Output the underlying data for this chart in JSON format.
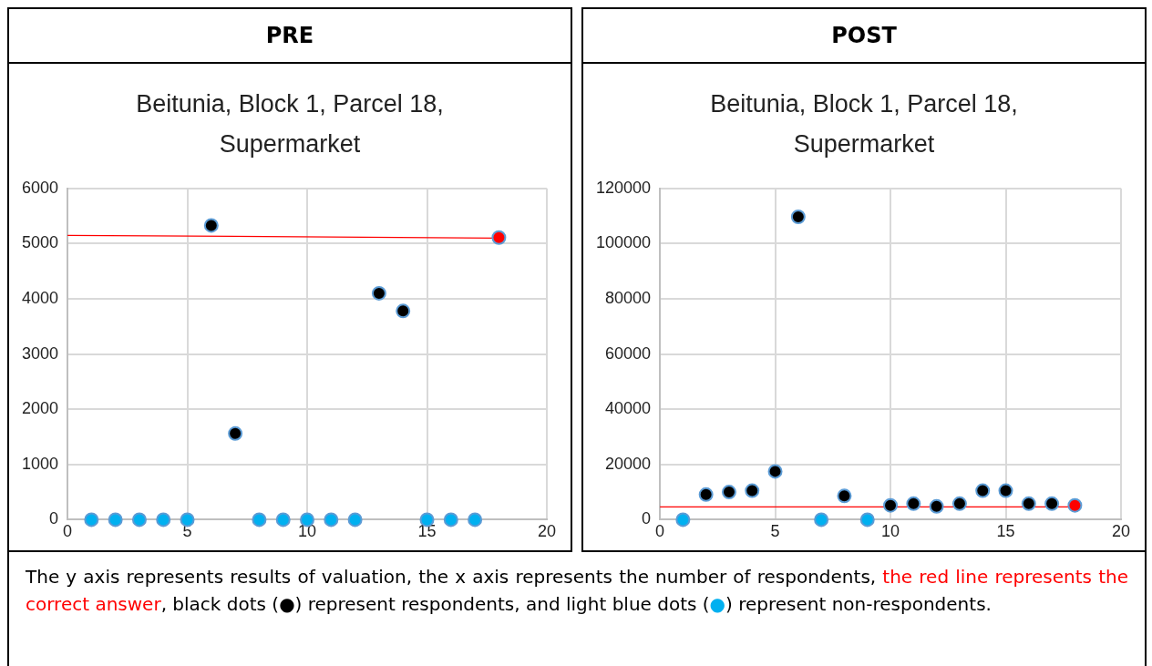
{
  "chart_data": [
    {
      "type": "scatter",
      "title": "PRE",
      "subtitle": "Beitunia, Block 1, Parcel 18, Supermarket",
      "xlim": [
        0,
        20
      ],
      "xticks": [
        0,
        5,
        10,
        15,
        20
      ],
      "ylim": [
        0,
        6000
      ],
      "yticks": [
        0,
        1000,
        2000,
        3000,
        4000,
        5000,
        6000
      ],
      "grid": true,
      "legend": false,
      "marker": "circle",
      "series": [
        {
          "type": "scatter",
          "color": "#00b0f0",
          "x": [
            1,
            2,
            3,
            4,
            5,
            8,
            9,
            10,
            11,
            12,
            15,
            16,
            17
          ],
          "values": [
            0,
            0,
            0,
            0,
            0,
            0,
            0,
            0,
            0,
            0,
            0,
            0,
            0
          ]
        },
        {
          "type": "scatter",
          "color": "#000000",
          "x": [
            6,
            7,
            13,
            14
          ],
          "values": [
            5330,
            1560,
            4100,
            3780
          ]
        },
        {
          "type": "line",
          "color": "#ff0000",
          "marker": "none",
          "x": [
            0,
            18
          ],
          "values": [
            5150,
            5100
          ]
        },
        {
          "type": "scatter",
          "color": "#ff0000",
          "x": [
            18
          ],
          "values": [
            5110
          ]
        }
      ]
    },
    {
      "type": "scatter",
      "title": "POST",
      "subtitle": "Beitunia, Block 1, Parcel 18, Supermarket",
      "xlim": [
        0,
        20
      ],
      "xticks": [
        0,
        5,
        10,
        15,
        20
      ],
      "ylim": [
        0,
        120000
      ],
      "yticks": [
        0,
        20000,
        40000,
        60000,
        80000,
        100000,
        120000
      ],
      "grid": true,
      "legend": false,
      "marker": "circle",
      "series": [
        {
          "type": "scatter",
          "color": "#00b0f0",
          "x": [
            1,
            7,
            9
          ],
          "values": [
            0,
            0,
            0
          ]
        },
        {
          "type": "scatter",
          "color": "#000000",
          "x": [
            2,
            3,
            4,
            5,
            6,
            8,
            10,
            11,
            12,
            13,
            14,
            15,
            16,
            17
          ],
          "values": [
            9100,
            10000,
            10500,
            17500,
            109700,
            8600,
            5200,
            5800,
            4800,
            5800,
            10500,
            10500,
            5800,
            5800
          ]
        },
        {
          "type": "line",
          "color": "#ff0000",
          "marker": "none",
          "x": [
            0,
            18
          ],
          "values": [
            4600,
            4600
          ]
        },
        {
          "type": "scatter",
          "color": "#ff0000",
          "x": [
            18
          ],
          "values": [
            5200
          ]
        }
      ]
    },
    {
      "type": "other",
      "annotations": [
        "The y axis represents results of valuation, the x axis represents the number of respondents, ",
        "the red line represents the correct answer",
        ", black dots (●) represent respondents, and light blue dots (",
        "●",
        ") represent non-respondents."
      ]
    }
  ]
}
